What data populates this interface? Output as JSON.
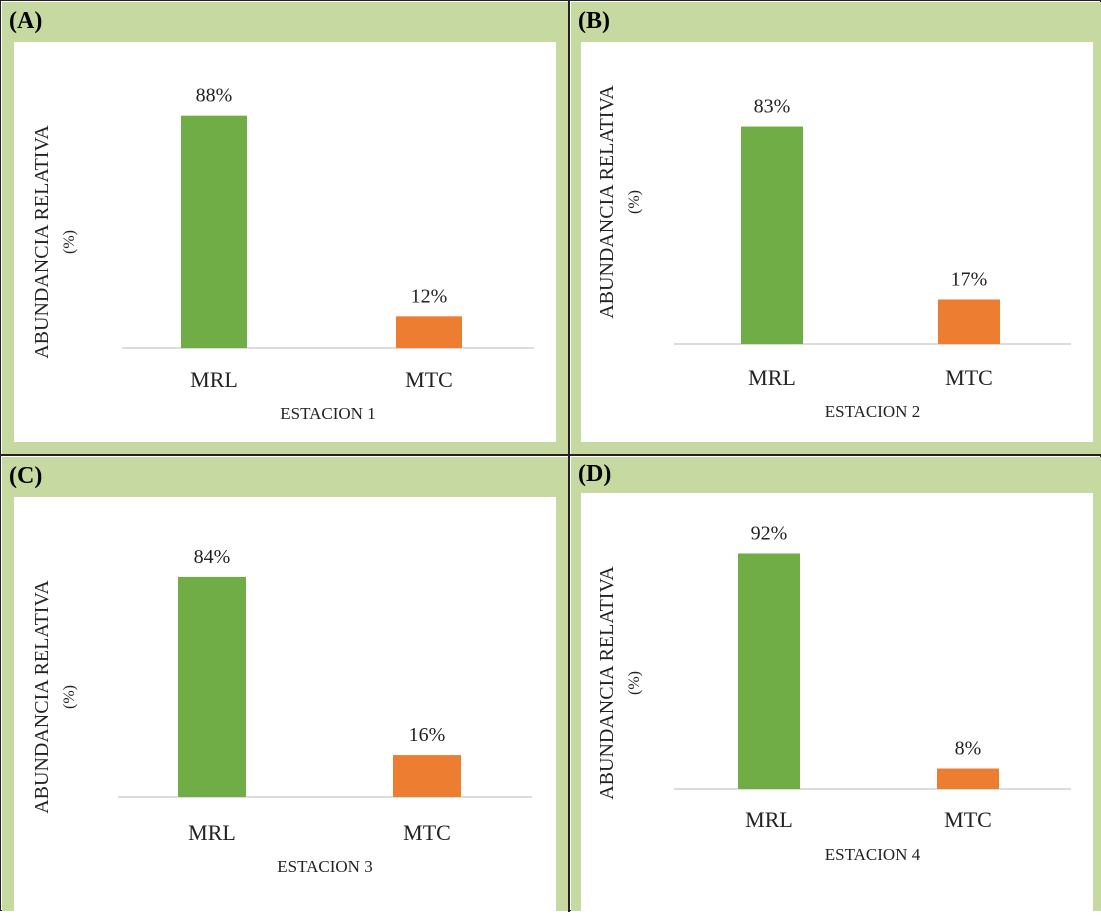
{
  "colors": {
    "MRL": "#70ad47",
    "MTC": "#ed7d31",
    "header": "#c5d9a1"
  },
  "chart_data": [
    {
      "panel": "(A)",
      "type": "bar",
      "categories": [
        "MRL",
        "MTC"
      ],
      "values": [
        88,
        12
      ],
      "labels": [
        "88%",
        "12%"
      ],
      "xlabel": "ESTACION 1",
      "ylabel_line1": "ABUNDANCIA RELATIVA",
      "ylabel_line2": "(%)",
      "ylim": [
        0,
        100
      ],
      "grid": false
    },
    {
      "panel": "(B)",
      "type": "bar",
      "categories": [
        "MRL",
        "MTC"
      ],
      "values": [
        83,
        17
      ],
      "labels": [
        "83%",
        "17%"
      ],
      "xlabel": "ESTACION 2",
      "ylabel_line1": "ABUNDANCIA RELATIVA",
      "ylabel_line2": "(%)",
      "ylim": [
        0,
        100
      ],
      "grid": false
    },
    {
      "panel": "(C)",
      "type": "bar",
      "categories": [
        "MRL",
        "MTC"
      ],
      "values": [
        84,
        16
      ],
      "labels": [
        "84%",
        "16%"
      ],
      "xlabel": "ESTACION 3",
      "ylabel_line1": "ABUNDANCIA RELATIVA",
      "ylabel_line2": "(%)",
      "ylim": [
        0,
        100
      ],
      "grid": false
    },
    {
      "panel": "(D)",
      "type": "bar",
      "categories": [
        "MRL",
        "MTC"
      ],
      "values": [
        92,
        8
      ],
      "labels": [
        "92%",
        "8%"
      ],
      "xlabel": "ESTACION 4",
      "ylabel_line1": "ABUNDANCIA RELATIVA",
      "ylabel_line2": "(%)",
      "ylim": [
        0,
        100
      ],
      "grid": false
    }
  ]
}
